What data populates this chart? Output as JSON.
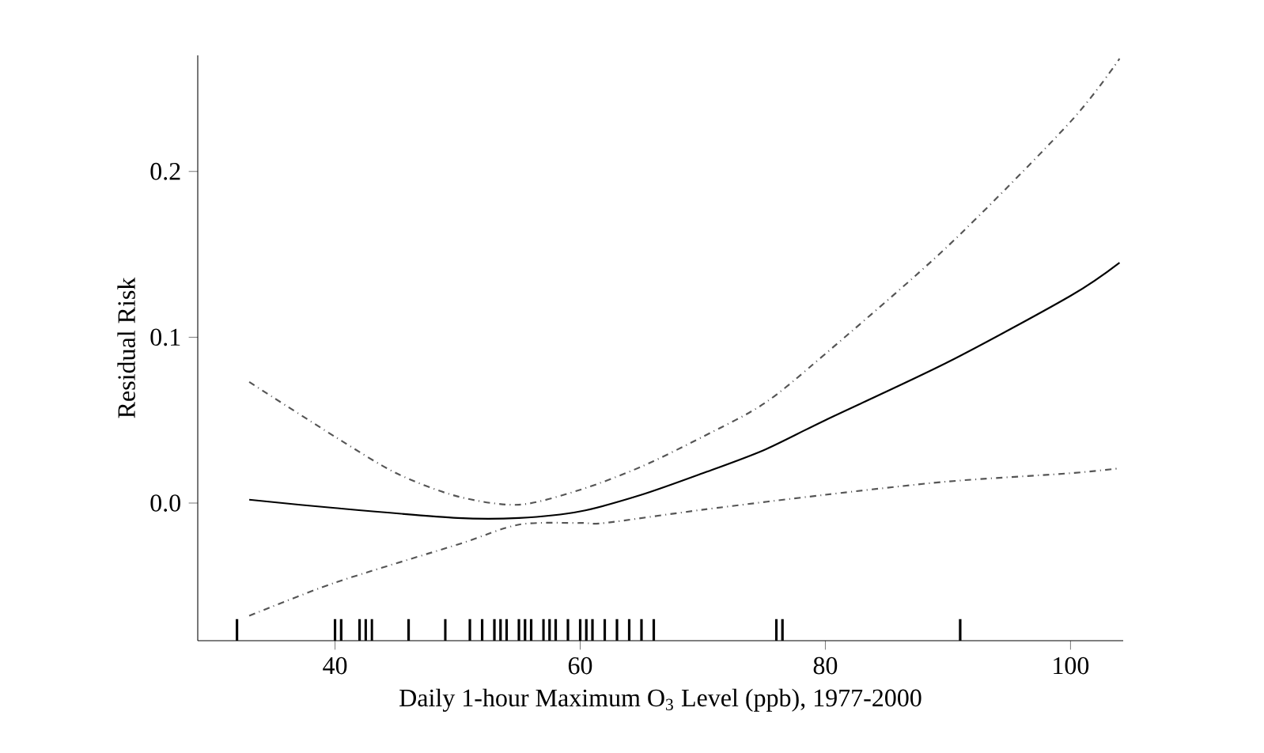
{
  "chart_data": {
    "type": "line",
    "xlabel": "Daily 1-hour Maximum O$_{3}$ Level (ppb), 1977-2000",
    "ylabel": "Residual Risk",
    "xlim": [
      28.8,
      104.3
    ],
    "ylim": [
      -0.083,
      0.27
    ],
    "xticks": [
      40,
      60,
      80,
      100
    ],
    "yticks": [
      {
        "value": 0,
        "label": "0.0"
      },
      {
        "value": 0.1,
        "label": "0.1"
      },
      {
        "value": 0.2,
        "label": "0.2"
      }
    ],
    "series": [
      {
        "color": "#000000",
        "line_style": "solid",
        "x": [
          33,
          40,
          50,
          55,
          60,
          65,
          70,
          75,
          80,
          90,
          100,
          104
        ],
        "values": [
          0.002,
          -0.003,
          -0.009,
          -0.009,
          -0.005,
          0.005,
          0.018,
          0.032,
          0.05,
          0.085,
          0.125,
          0.145
        ]
      },
      {
        "color": "#555555",
        "line_style": "dashed",
        "x": [
          33,
          40,
          45,
          50,
          55,
          60,
          65,
          70,
          75,
          80,
          90,
          100,
          104
        ],
        "values": [
          0.073,
          0.04,
          0.018,
          0.004,
          -0.001,
          0.008,
          0.022,
          0.04,
          0.06,
          0.09,
          0.155,
          0.23,
          0.268
        ]
      },
      {
        "color": "#555555",
        "line_style": "dashed",
        "x": [
          33,
          40,
          50,
          55,
          60,
          62,
          70,
          80,
          90,
          100,
          104
        ],
        "values": [
          -0.068,
          -0.048,
          -0.025,
          -0.013,
          -0.012,
          -0.012,
          -0.004,
          0.005,
          0.013,
          0.018,
          0.021
        ]
      },
      {
        "type": "bar",
        "color": "#000000",
        "x": [
          32,
          40,
          40.5,
          42,
          42.5,
          43,
          46,
          49,
          51,
          52,
          53,
          53.5,
          54,
          55,
          55.5,
          56,
          57,
          57.5,
          58,
          59,
          60,
          60.5,
          61,
          62,
          63,
          64,
          65,
          66,
          76,
          76.5,
          91
        ],
        "base": [
          -0.083,
          -0.083,
          -0.083,
          -0.083,
          -0.083,
          -0.083,
          -0.083,
          -0.083,
          -0.083,
          -0.083,
          -0.083,
          -0.083,
          -0.083,
          -0.083,
          -0.083,
          -0.083,
          -0.083,
          -0.083,
          -0.083,
          -0.083,
          -0.083,
          -0.083,
          -0.083,
          -0.083,
          -0.083,
          -0.083,
          -0.083,
          -0.083,
          -0.083,
          -0.083,
          -0.083
        ],
        "values": [
          0.013,
          0.013,
          0.013,
          0.013,
          0.013,
          0.013,
          0.013,
          0.013,
          0.013,
          0.013,
          0.013,
          0.013,
          0.013,
          0.013,
          0.013,
          0.013,
          0.013,
          0.013,
          0.013,
          0.013,
          0.013,
          0.013,
          0.013,
          0.013,
          0.013,
          0.013,
          0.013,
          0.013,
          0.013,
          0.013,
          0.013
        ]
      }
    ]
  }
}
